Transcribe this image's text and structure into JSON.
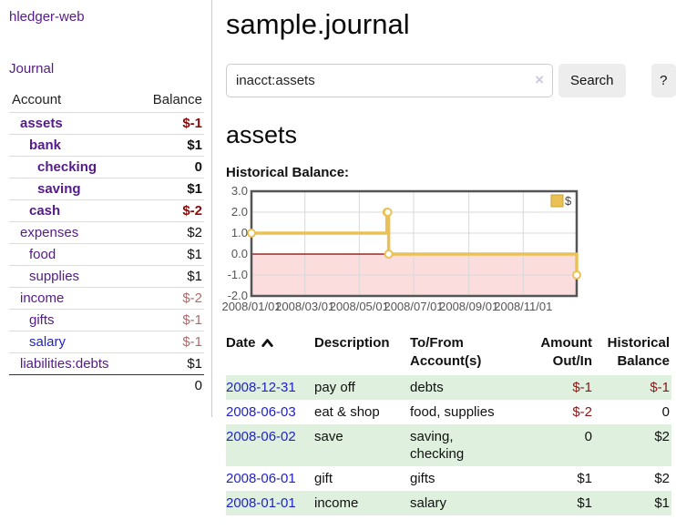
{
  "sidebar": {
    "brand": "hledger-web",
    "journal_link": "Journal",
    "accounts_table": {
      "account_header": "Account",
      "balance_header": "Balance",
      "rows": [
        {
          "account": "assets",
          "balance": "$-1",
          "depth": 1,
          "bold": true,
          "visited": true
        },
        {
          "account": "bank",
          "balance": "$1",
          "depth": 2,
          "bold": true,
          "visited": true
        },
        {
          "account": "checking",
          "balance": "0",
          "depth": 3,
          "bold": true,
          "visited": true
        },
        {
          "account": "saving",
          "balance": "$1",
          "depth": 3,
          "bold": true,
          "visited": true
        },
        {
          "account": "cash",
          "balance": "$-2",
          "depth": 2,
          "bold": true,
          "visited": true
        },
        {
          "account": "expenses",
          "balance": "$2",
          "depth": 1,
          "bold": false,
          "visited": true
        },
        {
          "account": "food",
          "balance": "$1",
          "depth": 2,
          "bold": false,
          "visited": true
        },
        {
          "account": "supplies",
          "balance": "$1",
          "depth": 2,
          "bold": false,
          "visited": true
        },
        {
          "account": "income",
          "balance": "$-2",
          "depth": 1,
          "bold": false,
          "visited": true
        },
        {
          "account": "gifts",
          "balance": "$-1",
          "depth": 2,
          "bold": false,
          "visited": true
        },
        {
          "account": "salary",
          "balance": "$-1",
          "depth": 2,
          "bold": false,
          "visited": false
        },
        {
          "account": "liabilities:debts",
          "balance": "$1",
          "depth": 1,
          "bold": false,
          "visited": true
        }
      ],
      "total": "0"
    }
  },
  "header": {
    "title": "sample.journal"
  },
  "search": {
    "value": "inacct:assets",
    "clear_icon": "×",
    "button_label": "Search",
    "help_label": "?"
  },
  "account_page": {
    "title": "assets",
    "chart_label": "Historical Balance:"
  },
  "chart_data": {
    "type": "line",
    "style": "step-after",
    "series": [
      {
        "name": "$",
        "points": [
          [
            "2008-01-01",
            1
          ],
          [
            "2008-06-01",
            2
          ],
          [
            "2008-06-02",
            2
          ],
          [
            "2008-06-03",
            0
          ],
          [
            "2008-12-31",
            -1
          ]
        ]
      }
    ],
    "x_range": [
      "2008-01-01",
      "2008-12-31"
    ],
    "ylim": [
      -2,
      3
    ],
    "y_ticks": [
      "3.0",
      "2.0",
      "1.0",
      "0.0",
      "-1.0",
      "-2.0"
    ],
    "x_ticks": [
      "2008/01/01",
      "2008/03/01",
      "2008/05/01",
      "2008/07/01",
      "2008/09/01",
      "2008/11/01"
    ],
    "legend": "$",
    "legend_position": "top-right",
    "grid": true,
    "colors": {
      "line": "#e9c156",
      "line_border": "#c9a52f",
      "marker_fill": "#ffffff",
      "negative_fill": "#fbdddd",
      "zero_line": "#8b0000",
      "grid": "#d8d8d8",
      "border": "#545454",
      "tick_text": "#555555"
    }
  },
  "register": {
    "columns": [
      "Date",
      "Description",
      "To/From Account(s)",
      "Amount Out/In",
      "Historical Balance"
    ],
    "rows": [
      {
        "date": "2008-12-31",
        "description": "pay off",
        "accounts": "debts",
        "amount": "$-1",
        "balance": "$-1"
      },
      {
        "date": "2008-06-03",
        "description": "eat & shop",
        "accounts": "food, supplies",
        "amount": "$-2",
        "balance": "0"
      },
      {
        "date": "2008-06-02",
        "description": "save",
        "accounts": "saving, checking",
        "amount": "0",
        "balance": "$2"
      },
      {
        "date": "2008-06-01",
        "description": "gift",
        "accounts": "gifts",
        "amount": "$1",
        "balance": "$2"
      },
      {
        "date": "2008-01-01",
        "description": "income",
        "accounts": "salary",
        "amount": "$1",
        "balance": "$1"
      }
    ]
  }
}
